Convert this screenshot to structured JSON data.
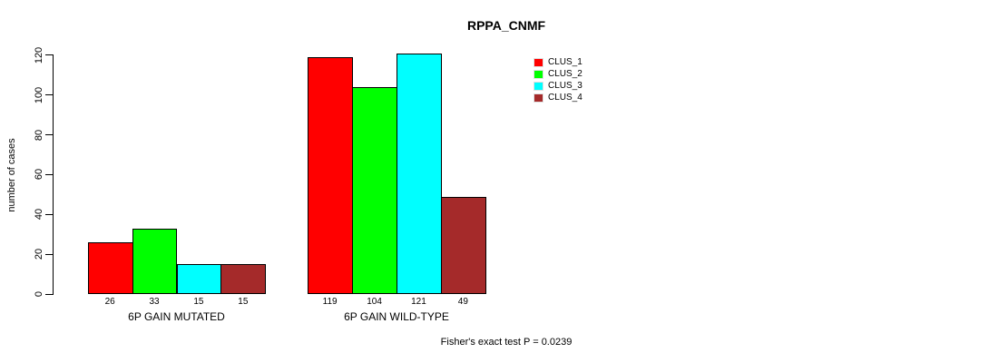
{
  "chart_data": {
    "type": "bar",
    "title": "RPPA_CNMF",
    "ylabel": "number of cases",
    "xlabel": "",
    "ylim": [
      0,
      120
    ],
    "yticks": [
      0,
      20,
      40,
      60,
      80,
      100,
      120
    ],
    "categories": [
      "6P GAIN MUTATED",
      "6P GAIN WILD-TYPE"
    ],
    "series": [
      {
        "name": "CLUS_1",
        "color": "#ff0000",
        "values": [
          26,
          119
        ]
      },
      {
        "name": "CLUS_2",
        "color": "#00ff00",
        "values": [
          33,
          104
        ]
      },
      {
        "name": "CLUS_3",
        "color": "#00ffff",
        "values": [
          15,
          121
        ]
      },
      {
        "name": "CLUS_4",
        "color": "#a52a2a",
        "values": [
          15,
          49
        ]
      }
    ],
    "bar_value_labels": [
      [
        "26",
        "33",
        "15",
        "15"
      ],
      [
        "119",
        "104",
        "121",
        "49"
      ]
    ],
    "legend_position": "top-right",
    "grid": false,
    "annotation": "Fisher's exact test P = 0.0239"
  }
}
